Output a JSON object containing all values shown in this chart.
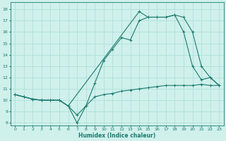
{
  "xlabel": "Humidex (Indice chaleur)",
  "bg_color": "#cff0eb",
  "line_color": "#1a7a6e",
  "grid_color": "#aaddd7",
  "xlim": [
    -0.5,
    23.5
  ],
  "ylim": [
    7.8,
    18.6
  ],
  "yticks": [
    8,
    9,
    10,
    11,
    12,
    13,
    14,
    15,
    16,
    17,
    18
  ],
  "xticks": [
    0,
    1,
    2,
    3,
    4,
    5,
    6,
    7,
    8,
    9,
    10,
    11,
    12,
    13,
    14,
    15,
    16,
    17,
    18,
    19,
    20,
    21,
    22,
    23
  ],
  "s1_x": [
    0,
    1,
    2,
    3,
    4,
    5,
    6,
    7,
    8,
    9,
    10,
    11,
    12,
    13,
    14,
    15,
    16,
    17,
    18,
    19,
    20,
    21,
    22,
    23
  ],
  "s1_y": [
    10.5,
    10.3,
    10.1,
    10.0,
    10.0,
    10.0,
    9.5,
    8.7,
    9.5,
    10.3,
    10.5,
    10.6,
    10.8,
    10.9,
    11.0,
    11.1,
    11.2,
    11.3,
    11.3,
    11.3,
    11.3,
    11.4,
    11.3,
    11.3
  ],
  "s2_x": [
    0,
    1,
    2,
    3,
    4,
    5,
    6,
    7,
    8,
    9,
    10,
    11,
    12,
    13,
    14,
    15,
    16,
    17,
    18,
    19,
    20,
    21,
    22,
    23
  ],
  "s2_y": [
    10.5,
    10.3,
    10.1,
    10.0,
    10.0,
    10.0,
    9.5,
    8.0,
    9.5,
    11.5,
    13.5,
    14.5,
    15.5,
    15.3,
    17.0,
    17.3,
    17.3,
    17.3,
    17.5,
    16.0,
    13.0,
    11.8,
    12.0,
    11.3
  ],
  "s3_x": [
    0,
    1,
    2,
    3,
    4,
    5,
    6,
    14,
    15,
    16,
    17,
    18,
    19,
    20,
    21,
    22,
    23
  ],
  "s3_y": [
    10.5,
    10.3,
    10.1,
    10.0,
    10.0,
    10.0,
    9.5,
    17.8,
    17.3,
    17.3,
    17.3,
    17.5,
    17.3,
    16.0,
    13.0,
    12.0,
    11.3
  ]
}
